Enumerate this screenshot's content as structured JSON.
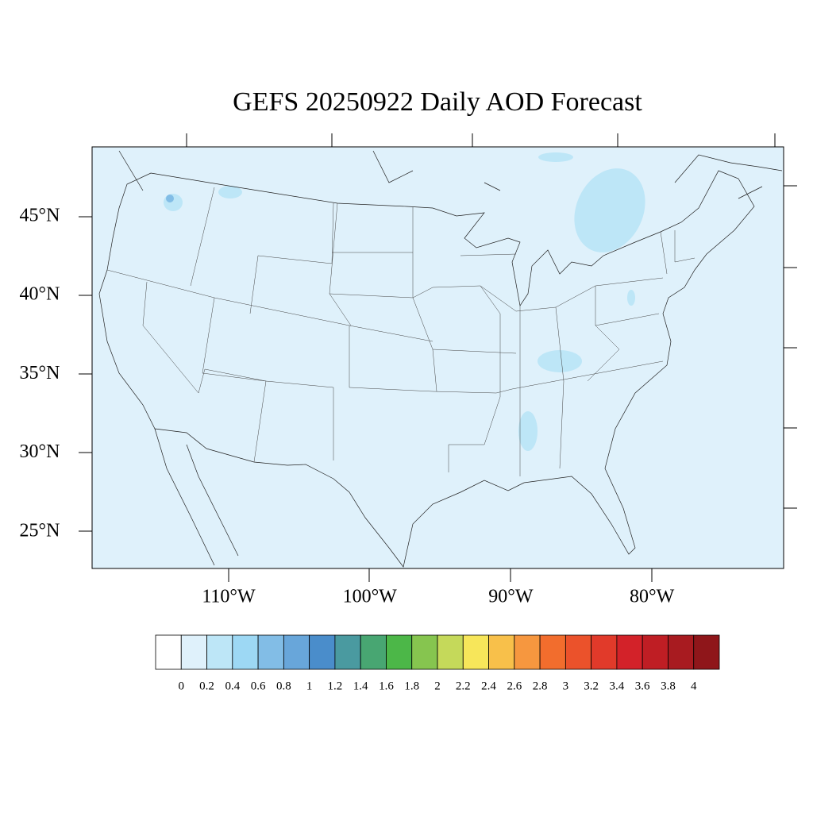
{
  "title": "GEFS 20250922 Daily AOD Forecast",
  "map": {
    "lat_labels": [
      "45°N",
      "40°N",
      "35°N",
      "30°N",
      "25°N"
    ],
    "lon_labels": [
      "110°W",
      "100°W",
      "90°W",
      "80°W"
    ]
  },
  "colorbar": {
    "colors": [
      "#ffffff",
      "#dff1fb",
      "#bde6f7",
      "#9dd8f4",
      "#82bde6",
      "#68a6da",
      "#4a8dcb",
      "#4a9aa0",
      "#48a672",
      "#4cb748",
      "#86c54f",
      "#c5d95a",
      "#f7e65a",
      "#f8c04a",
      "#f6973f",
      "#f26d2d",
      "#eb522b",
      "#e13a2a",
      "#d32229",
      "#bf1e24",
      "#a81b20",
      "#8f161a"
    ],
    "labels": [
      0,
      0.2,
      0.4,
      0.6,
      0.8,
      1,
      1.2,
      1.4,
      1.6,
      1.8,
      2,
      2.2,
      2.4,
      2.6,
      2.8,
      3,
      3.2,
      3.4,
      3.6,
      3.8,
      4
    ]
  }
}
